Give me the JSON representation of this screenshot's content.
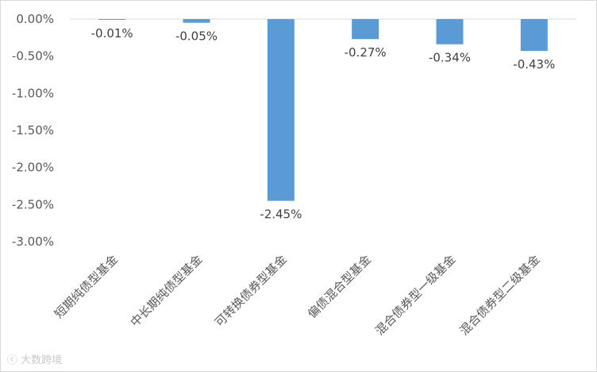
{
  "chart_data": {
    "type": "bar",
    "categories": [
      "短期纯债型基金",
      "中长期纯债型基金",
      "可转换债券型基金",
      "偏债混合型基金",
      "混合债券型一级基金",
      "混合债券型二级基金"
    ],
    "values": [
      -0.01,
      -0.05,
      -2.45,
      -0.27,
      -0.34,
      -0.43
    ],
    "data_labels": [
      "-0.01%",
      "-0.05%",
      "-2.45%",
      "-0.27%",
      "-0.34%",
      "-0.43%"
    ],
    "y_ticks": [
      0.0,
      -0.5,
      -1.0,
      -1.5,
      -2.0,
      -2.5,
      -3.0
    ],
    "y_tick_labels": [
      "0.00%",
      "-0.50%",
      "-1.00%",
      "-1.50%",
      "-2.00%",
      "-2.50%",
      "-3.00%"
    ],
    "ylim": [
      -3.0,
      0.0
    ],
    "title": "",
    "xlabel": "",
    "ylabel": "",
    "grid": false,
    "legend": "none",
    "bar_color": "#5b9bd5",
    "axis_color": "#d9d9d9"
  },
  "watermark": {
    "logo_glyph": "ⓒ",
    "text": "大数跨境"
  }
}
